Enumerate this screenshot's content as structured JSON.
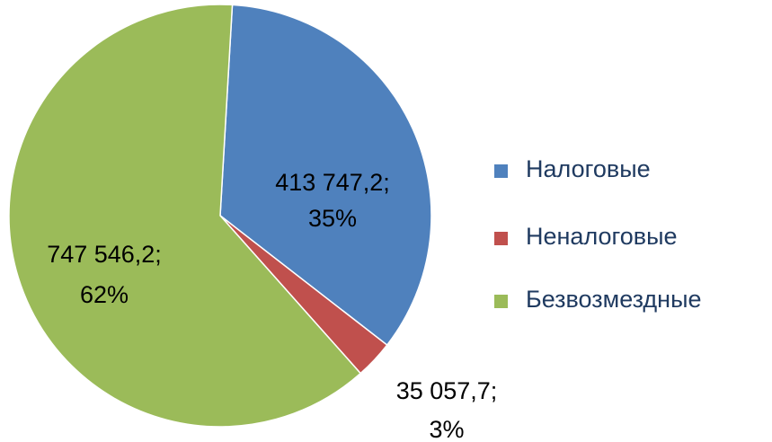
{
  "chart_data": {
    "type": "pie",
    "categories": [
      "Налоговые",
      "Неналоговые",
      "Безвозмездные"
    ],
    "values": [
      413747.2,
      35057.7,
      747546.2
    ],
    "value_labels": [
      "413 747,2;",
      "35 057,7;",
      "747 546,2;"
    ],
    "percent_labels": [
      "35%",
      "3%",
      "62%"
    ],
    "colors": [
      "#4f81bd",
      "#c0504d",
      "#9bbb59"
    ],
    "legend": "right"
  }
}
